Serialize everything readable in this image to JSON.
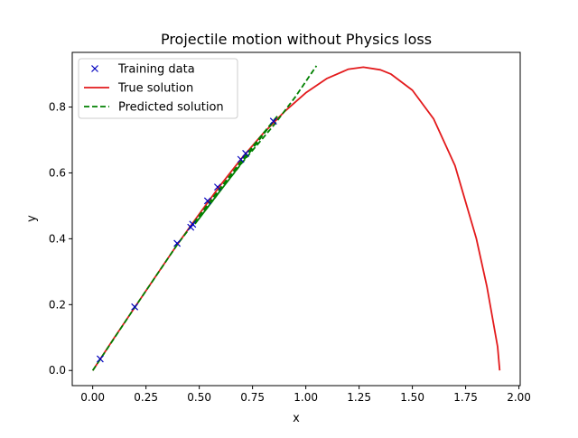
{
  "chart_data": {
    "type": "line",
    "title": "Projectile motion without Physics loss",
    "xlabel": "x",
    "ylabel": "y",
    "xlim": [
      -0.096,
      2.006
    ],
    "ylim": [
      -0.046,
      0.966
    ],
    "xticks": [
      0.0,
      0.25,
      0.5,
      0.75,
      1.0,
      1.25,
      1.5,
      1.75,
      2.0
    ],
    "xtick_labels": [
      "0.00",
      "0.25",
      "0.50",
      "0.75",
      "1.00",
      "1.25",
      "1.50",
      "1.75",
      "2.00"
    ],
    "yticks": [
      0.0,
      0.2,
      0.4,
      0.6,
      0.8
    ],
    "ytick_labels": [
      "0.0",
      "0.2",
      "0.4",
      "0.6",
      "0.8"
    ],
    "grid": false,
    "legend_position": "top-left",
    "series": [
      {
        "name": "Training data",
        "kind": "scatter",
        "marker": "x",
        "color": "#0000bf",
        "x": [
          0.035,
          0.197,
          0.396,
          0.46,
          0.469,
          0.539,
          0.586,
          0.695,
          0.718,
          0.848
        ],
        "y": [
          0.035,
          0.193,
          0.386,
          0.435,
          0.444,
          0.515,
          0.557,
          0.641,
          0.659,
          0.757
        ]
      },
      {
        "name": "True solution",
        "kind": "line",
        "style": "solid",
        "color": "#e31a1c",
        "x": [
          0.0,
          0.1,
          0.2,
          0.3,
          0.4,
          0.5,
          0.6,
          0.7,
          0.8,
          0.9,
          1.0,
          1.1,
          1.2,
          1.27,
          1.35,
          1.4,
          1.5,
          1.6,
          1.7,
          1.8,
          1.85,
          1.9,
          1.91
        ],
        "y": [
          0.0,
          0.098,
          0.194,
          0.29,
          0.385,
          0.475,
          0.563,
          0.645,
          0.72,
          0.786,
          0.843,
          0.887,
          0.915,
          0.921,
          0.913,
          0.9,
          0.851,
          0.764,
          0.622,
          0.401,
          0.254,
          0.072,
          0.0
        ]
      },
      {
        "name": "Predicted solution",
        "kind": "line",
        "style": "dashed",
        "color": "#008000",
        "x": [
          0.0,
          0.2,
          0.4,
          0.5,
          0.6,
          0.7,
          0.8,
          0.87,
          0.48,
          0.58,
          0.7,
          0.85,
          0.95,
          1.05
        ],
        "y": [
          0.0,
          0.194,
          0.385,
          0.47,
          0.555,
          0.638,
          0.72,
          0.775,
          0.445,
          0.53,
          0.63,
          0.745,
          0.83,
          0.925
        ]
      }
    ]
  }
}
